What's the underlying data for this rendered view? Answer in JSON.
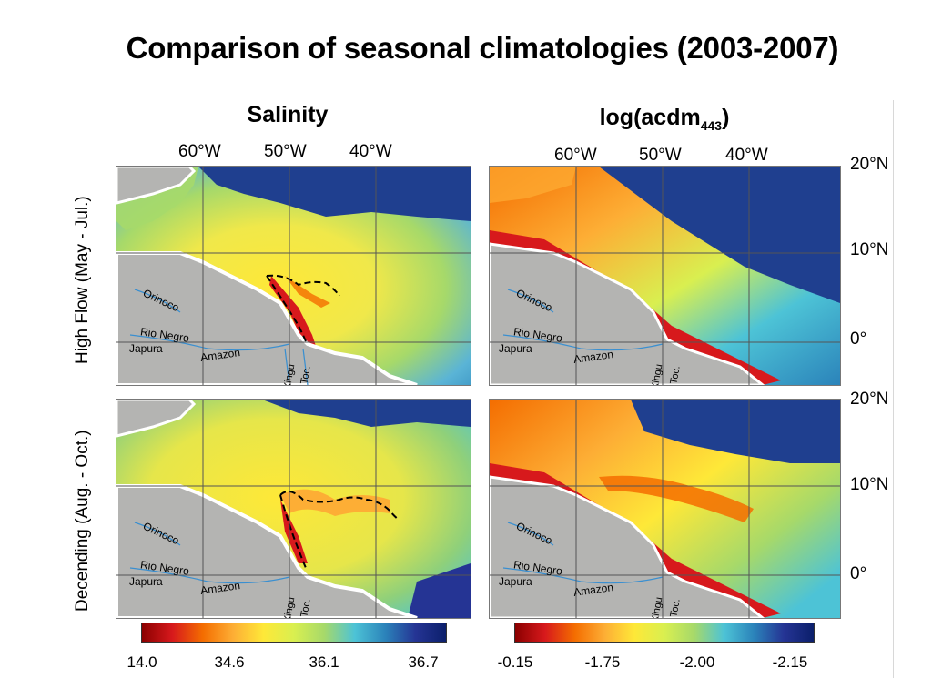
{
  "title": "Comparison of seasonal climatologies (2003-2007)",
  "columns": {
    "left_title": "Salinity",
    "right_title_main": "log(acdm",
    "right_title_sub": "443",
    "right_title_close": ")"
  },
  "rows": {
    "top_label": "High Flow (May - Jul.)",
    "bottom_label": "Decending (Aug. - Oct.)"
  },
  "longitude_labels": [
    "60°W",
    "50°W",
    "40°W"
  ],
  "latitude_labels": [
    "20°N",
    "10°N",
    "0°"
  ],
  "rivers": {
    "orinoco": "Orinoco",
    "rio_negro": "Rio Negro",
    "japura": "Japura",
    "amazon": "Amazon",
    "xingu": "Xingu",
    "toc": "Toc."
  },
  "salinity_colorbar": {
    "ticks": [
      "14.0",
      "34.6",
      "36.1",
      "36.7"
    ],
    "colors": [
      "#8b0000",
      "#d7191c",
      "#f46d00",
      "#fdae35",
      "#fee838",
      "#d9ef50",
      "#a6d96a",
      "#4dc3d6",
      "#2b83ba",
      "#253494",
      "#0b1f6b"
    ]
  },
  "acdm_colorbar": {
    "ticks": [
      "-0.15",
      "-1.75",
      "-2.00",
      "-2.15"
    ],
    "colors": [
      "#8b0000",
      "#d7191c",
      "#f46d00",
      "#fdae35",
      "#fee838",
      "#d9ef50",
      "#a6d96a",
      "#4dc3d6",
      "#2b83ba",
      "#253494",
      "#0b1f6b"
    ]
  },
  "map_colors": {
    "land": "#b4b4b2",
    "river": "#3a8fd0",
    "deep_ocean": "#1f3f8f",
    "plume_red": "#d7191c"
  }
}
